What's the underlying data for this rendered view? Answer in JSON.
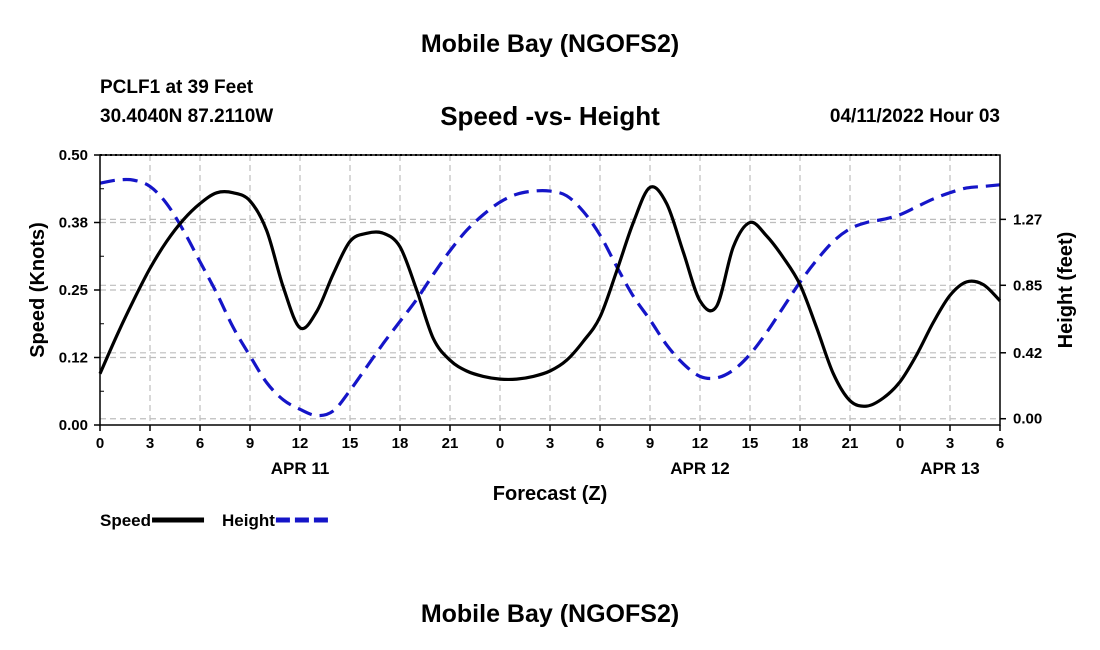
{
  "header": {
    "title": "Mobile Bay (NGOFS2)",
    "station": "PCLF1 at 39 Feet",
    "coords": "30.4040N  87.2110W",
    "subtitle": "Speed -vs- Height",
    "datetime": "04/11/2022 Hour 03"
  },
  "footer": {
    "title": "Mobile Bay (NGOFS2)"
  },
  "chart_data": {
    "type": "line",
    "x_hours": [
      0,
      1,
      2,
      3,
      4,
      5,
      6,
      7,
      8,
      9,
      10,
      11,
      12,
      13,
      14,
      15,
      16,
      17,
      18,
      19,
      20,
      21,
      22,
      23,
      24,
      25,
      26,
      27,
      28,
      29,
      30,
      31,
      32,
      33,
      34,
      35,
      36,
      37,
      38,
      39,
      40,
      41,
      42,
      43,
      44,
      45,
      46,
      47,
      48,
      49,
      50,
      51,
      52,
      53,
      54
    ],
    "xlim": [
      0,
      54
    ],
    "x_ticks": [
      {
        "hour": 0,
        "label": "0"
      },
      {
        "hour": 3,
        "label": "3"
      },
      {
        "hour": 6,
        "label": "6"
      },
      {
        "hour": 9,
        "label": "9"
      },
      {
        "hour": 12,
        "label": "12"
      },
      {
        "hour": 15,
        "label": "15"
      },
      {
        "hour": 18,
        "label": "18"
      },
      {
        "hour": 21,
        "label": "21"
      },
      {
        "hour": 24,
        "label": "0"
      },
      {
        "hour": 27,
        "label": "3"
      },
      {
        "hour": 30,
        "label": "6"
      },
      {
        "hour": 33,
        "label": "9"
      },
      {
        "hour": 36,
        "label": "12"
      },
      {
        "hour": 39,
        "label": "15"
      },
      {
        "hour": 42,
        "label": "18"
      },
      {
        "hour": 45,
        "label": "21"
      },
      {
        "hour": 48,
        "label": "0"
      },
      {
        "hour": 51,
        "label": "3"
      },
      {
        "hour": 54,
        "label": "6"
      }
    ],
    "date_labels": [
      {
        "hour": 12,
        "label": "APR 11"
      },
      {
        "hour": 36,
        "label": "APR 12"
      },
      {
        "hour": 51,
        "label": "APR 13"
      }
    ],
    "xlabel": "Forecast (Z)",
    "left_axis": {
      "label": "Speed (Knots)",
      "ylim": [
        0,
        0.5
      ],
      "ticks": [
        0,
        0.125,
        0.25,
        0.375,
        0.5
      ],
      "tick_labels": [
        "0.00",
        "0.12",
        "0.25",
        "0.38",
        "0.50"
      ]
    },
    "right_axis": {
      "label": "Height (feet)",
      "ylim": [
        -0.04,
        1.68
      ],
      "ticks": [
        0,
        0.42,
        0.85,
        1.27
      ],
      "tick_labels": [
        "0.00",
        "0.42",
        "0.85",
        "1.27"
      ]
    },
    "series": [
      {
        "name": "Speed",
        "axis": "left",
        "color": "#000000",
        "dash": "solid",
        "values": [
          0.095,
          0.165,
          0.23,
          0.29,
          0.34,
          0.38,
          0.41,
          0.43,
          0.43,
          0.415,
          0.36,
          0.255,
          0.18,
          0.21,
          0.28,
          0.34,
          0.355,
          0.355,
          0.33,
          0.25,
          0.16,
          0.12,
          0.1,
          0.09,
          0.085,
          0.085,
          0.09,
          0.1,
          0.12,
          0.155,
          0.2,
          0.285,
          0.375,
          0.44,
          0.41,
          0.32,
          0.23,
          0.22,
          0.33,
          0.375,
          0.35,
          0.31,
          0.26,
          0.18,
          0.095,
          0.045,
          0.035,
          0.05,
          0.08,
          0.13,
          0.19,
          0.24,
          0.265,
          0.26,
          0.23
        ]
      },
      {
        "name": "Height",
        "axis": "right",
        "color": "#1515c8",
        "dash": "dashed",
        "values": [
          1.5,
          1.52,
          1.52,
          1.48,
          1.37,
          1.2,
          1.0,
          0.8,
          0.58,
          0.4,
          0.23,
          0.12,
          0.06,
          0.02,
          0.05,
          0.18,
          0.33,
          0.48,
          0.62,
          0.76,
          0.92,
          1.07,
          1.2,
          1.3,
          1.38,
          1.43,
          1.45,
          1.45,
          1.42,
          1.32,
          1.17,
          0.97,
          0.78,
          0.63,
          0.47,
          0.35,
          0.27,
          0.26,
          0.31,
          0.41,
          0.55,
          0.71,
          0.87,
          1.01,
          1.13,
          1.21,
          1.25,
          1.27,
          1.3,
          1.35,
          1.4,
          1.44,
          1.47,
          1.48,
          1.49
        ]
      }
    ],
    "legend": [
      {
        "name": "Speed",
        "color": "#000000",
        "dash": "solid"
      },
      {
        "name": "Height",
        "color": "#1515c8",
        "dash": "dashed"
      }
    ],
    "grid": true
  }
}
